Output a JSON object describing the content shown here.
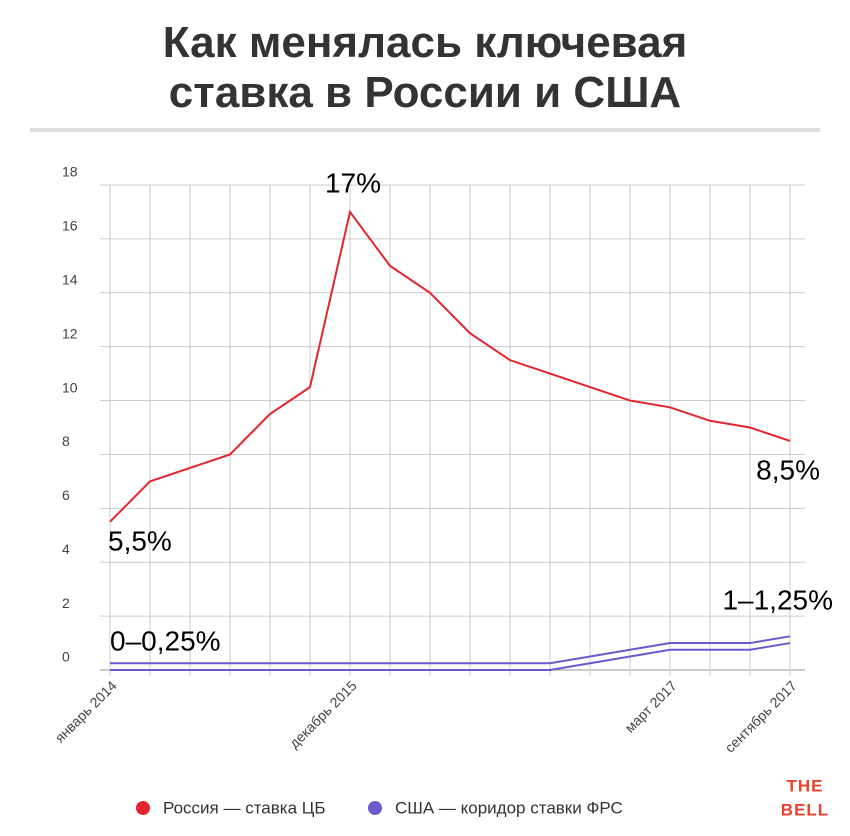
{
  "chart_data": {
    "type": "line",
    "title": "Как менялась ключевая ставка в России и США",
    "categories": [
      "январь 2014",
      null,
      null,
      null,
      null,
      null,
      "декабрь 2015",
      null,
      null,
      null,
      null,
      null,
      null,
      null,
      "март 2017",
      null,
      null,
      "сентябрь 2017"
    ],
    "series": [
      {
        "name": "Россия — ставка ЦБ",
        "color": "#e3262d",
        "values": [
          5.5,
          7,
          7.5,
          8,
          9.5,
          10.5,
          17,
          15,
          14,
          12.5,
          11.5,
          11,
          10.5,
          10,
          9.75,
          9.25,
          9,
          8.5
        ]
      },
      {
        "name": "США — коридор ставки ФРС",
        "color": "#6a5acd",
        "values": [
          0.25,
          0.25,
          0.25,
          0.25,
          0.25,
          0.25,
          0.25,
          0.25,
          0.25,
          0.25,
          0.25,
          0.25,
          0.5,
          0.75,
          1,
          1,
          1,
          1.25
        ],
        "lower": [
          0,
          0,
          0,
          0,
          0,
          0,
          0,
          0,
          0,
          0,
          0,
          0,
          0.25,
          0.5,
          0.75,
          0.75,
          0.75,
          1
        ]
      }
    ],
    "ylim": [
      0,
      18
    ],
    "yticks": [
      0,
      2,
      4,
      6,
      8,
      10,
      12,
      14,
      16,
      18
    ],
    "grid": true,
    "annotations": [
      "17%",
      "5,5%",
      "8,5%",
      "0–0,25%",
      "1–1,25%"
    ],
    "logo": [
      "THE",
      "BELL"
    ]
  }
}
